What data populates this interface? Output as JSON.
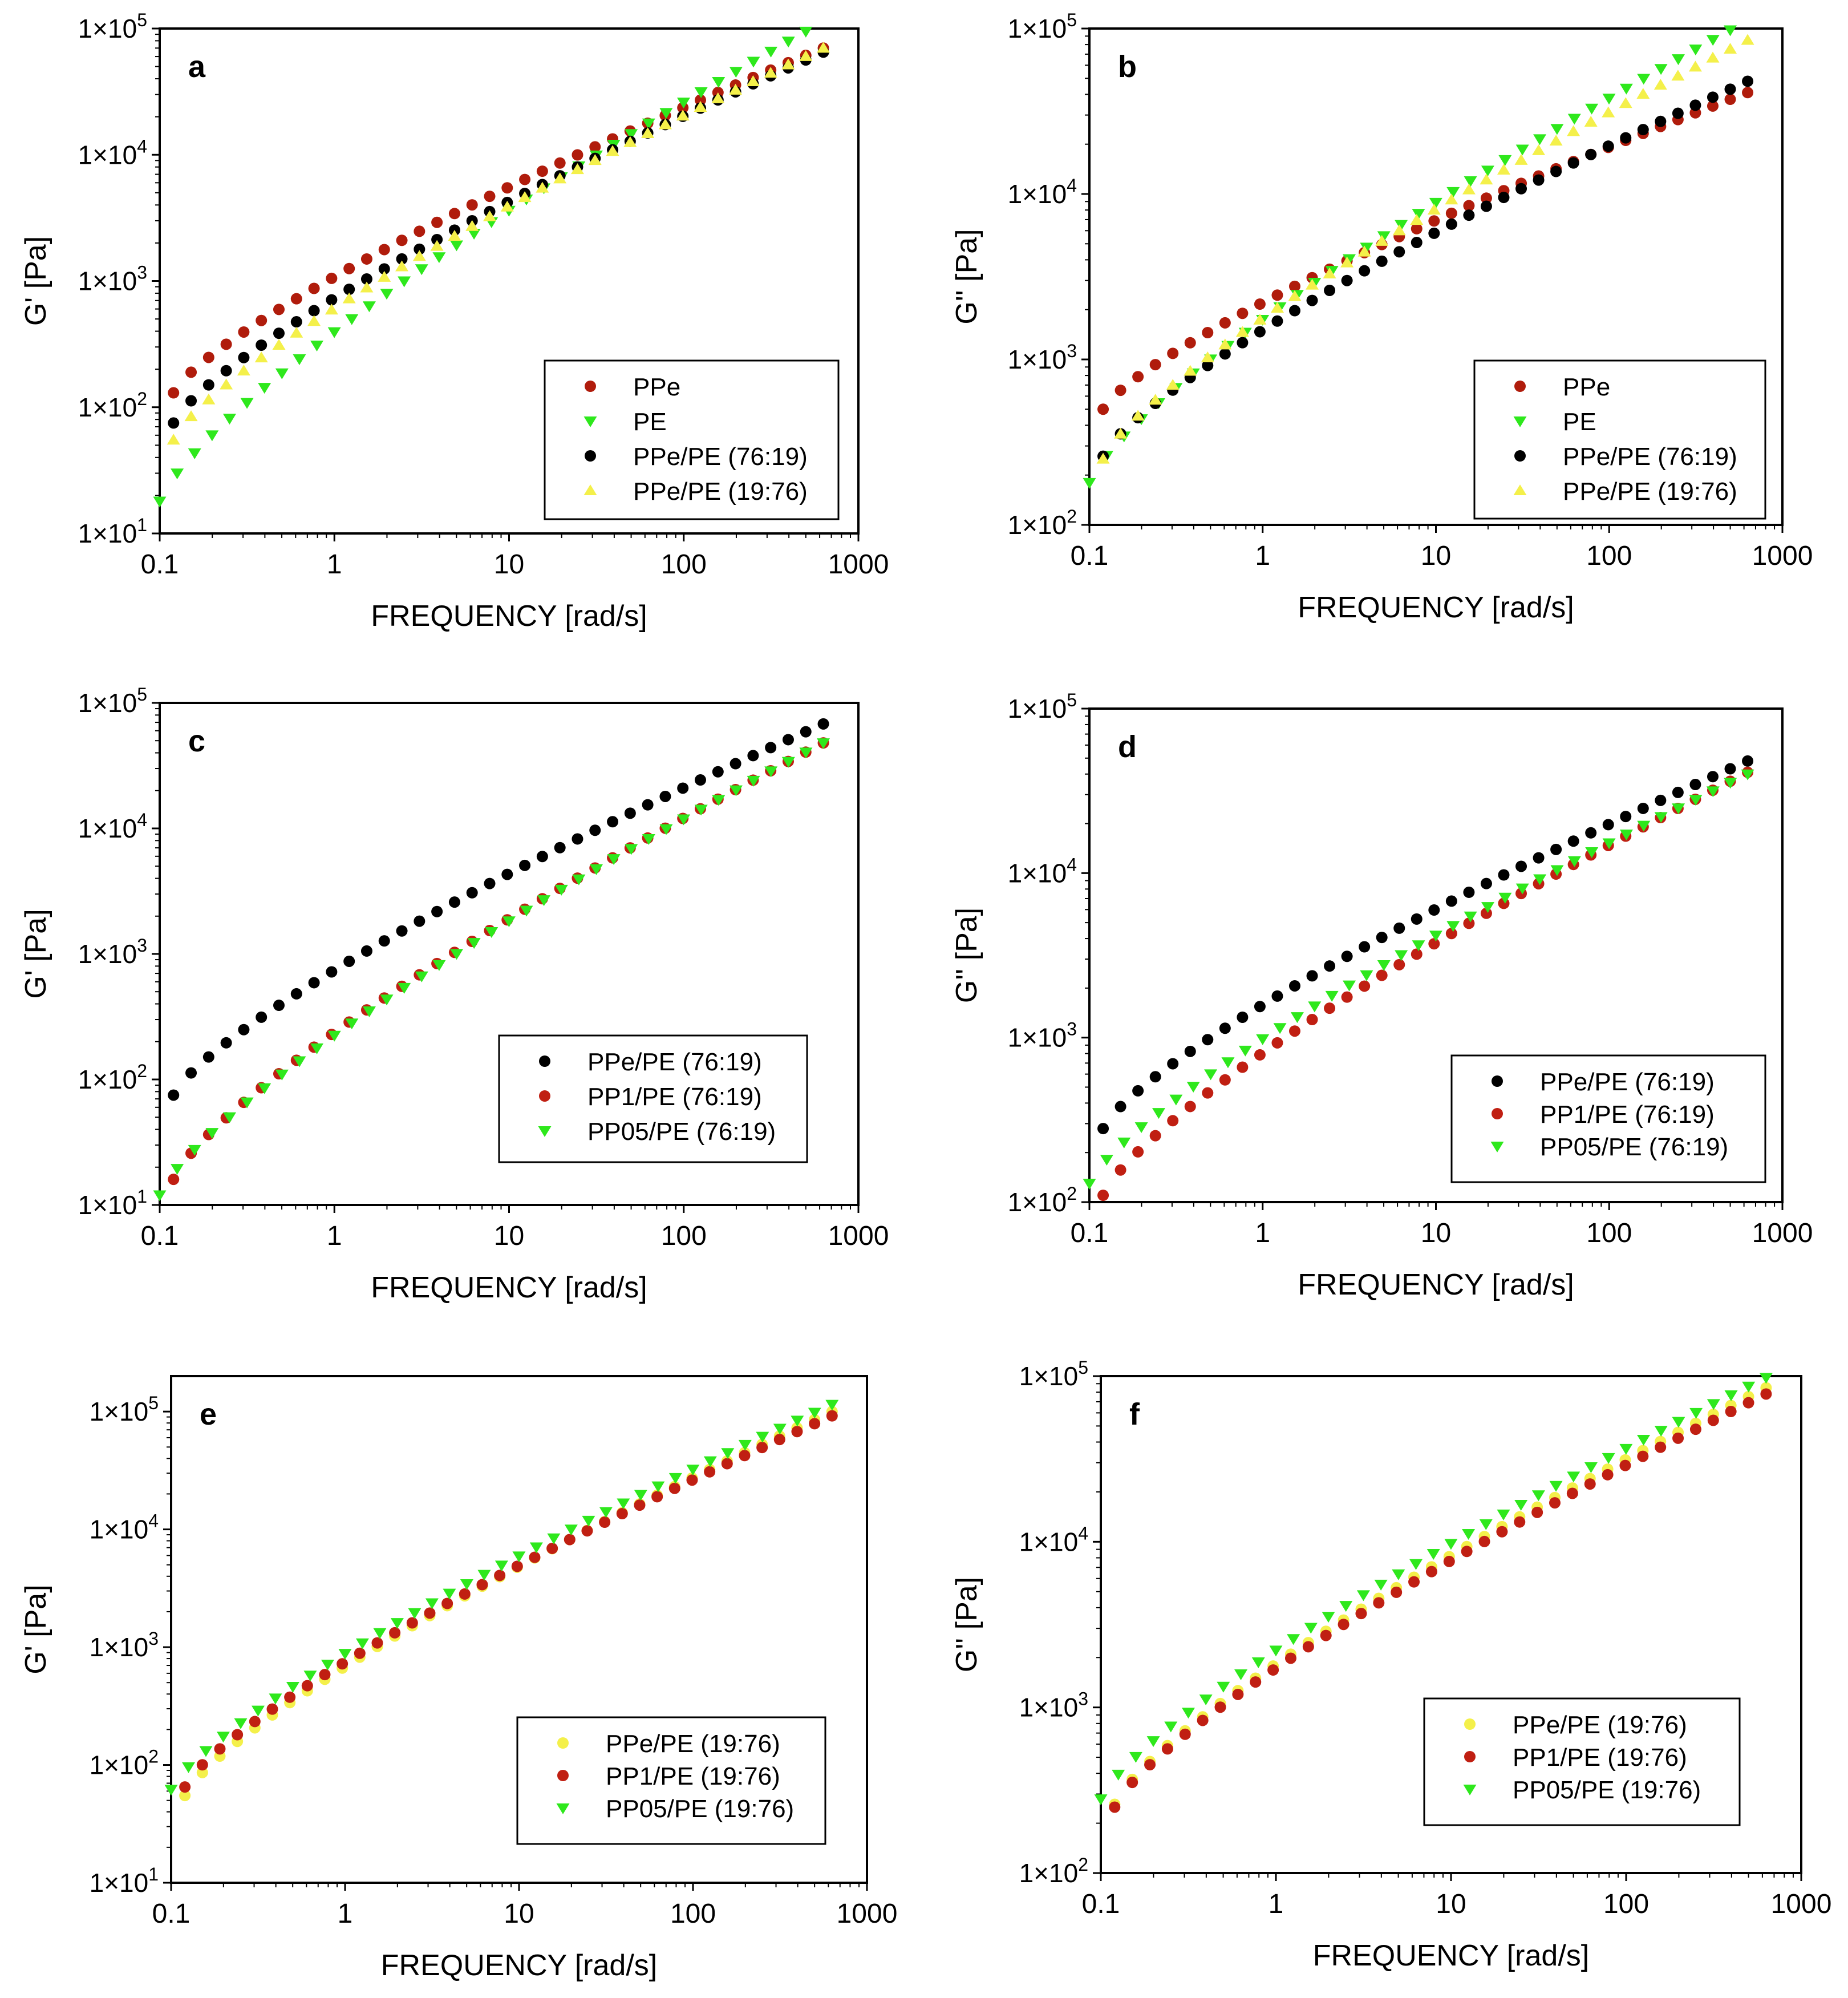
{
  "colors": {
    "PPe": "#b01c0c",
    "PE": "#2ee81c",
    "PPe/PE (76:19)": "#000000",
    "PPe/PE (19:76)": "#f4f04a",
    "PP1/PE (76:19)": "#c01f12",
    "PP05/PE (76:19)": "#2ee81c",
    "PP1/PE (19:76)": "#c01f12",
    "PP05/PE (19:76)": "#2ee81c"
  },
  "chart_data": [
    {
      "panel": "a",
      "type": "scatter",
      "xlabel": "FREQUENCY [rad/s]",
      "ylabel": "G' [Pa]",
      "xscale": "log",
      "yscale": "log",
      "xlim": [
        0.1,
        1000
      ],
      "ylim": [
        10,
        100000
      ],
      "legend_position": "bottom-right",
      "series": [
        {
          "name": "PPe",
          "marker": "circle",
          "x_range": [
            0.12,
            630
          ],
          "y_start": 130,
          "y_end": 70000
        },
        {
          "name": "PE",
          "marker": "triangle-down",
          "x_range": [
            0.1,
            500
          ],
          "y_start": 18,
          "y_end": 95000
        },
        {
          "name": "PPe/PE (76:19)",
          "marker": "circle",
          "x_range": [
            0.12,
            630
          ],
          "y_start": 75,
          "y_end": 65000
        },
        {
          "name": "PPe/PE (19:76)",
          "marker": "triangle-up",
          "x_range": [
            0.12,
            630
          ],
          "y_start": 55,
          "y_end": 70000
        }
      ]
    },
    {
      "panel": "b",
      "type": "scatter",
      "xlabel": "FREQUENCY [rad/s]",
      "ylabel": "G'' [Pa]",
      "xscale": "log",
      "yscale": "log",
      "xlim": [
        0.1,
        1000
      ],
      "ylim": [
        100,
        100000
      ],
      "legend_position": "bottom-right",
      "series": [
        {
          "name": "PPe",
          "marker": "circle",
          "x_range": [
            0.12,
            630
          ],
          "y_start": 500,
          "y_end": 41000
        },
        {
          "name": "PE",
          "marker": "triangle-down",
          "x_range": [
            0.1,
            500
          ],
          "y_start": 180,
          "y_end": 98000
        },
        {
          "name": "PPe/PE (76:19)",
          "marker": "circle",
          "x_range": [
            0.12,
            630
          ],
          "y_start": 260,
          "y_end": 48000
        },
        {
          "name": "PPe/PE (19:76)",
          "marker": "triangle-up",
          "x_range": [
            0.12,
            630
          ],
          "y_start": 250,
          "y_end": 85000
        }
      ]
    },
    {
      "panel": "c",
      "type": "scatter",
      "xlabel": "FREQUENCY [rad/s]",
      "ylabel": "G' [Pa]",
      "xscale": "log",
      "yscale": "log",
      "xlim": [
        0.1,
        1000
      ],
      "ylim": [
        10,
        100000
      ],
      "legend_position": "bottom-right",
      "series": [
        {
          "name": "PPe/PE (76:19)",
          "marker": "circle",
          "x_range": [
            0.12,
            630
          ],
          "y_start": 75,
          "y_end": 68000
        },
        {
          "name": "PP1/PE (76:19)",
          "marker": "circle",
          "x_range": [
            0.12,
            630
          ],
          "y_start": 16,
          "y_end": 48000
        },
        {
          "name": "PP05/PE (76:19)",
          "marker": "triangle-down",
          "x_range": [
            0.1,
            630
          ],
          "y_start": 12,
          "y_end": 48000
        }
      ]
    },
    {
      "panel": "d",
      "type": "scatter",
      "xlabel": "FREQUENCY [rad/s]",
      "ylabel": "G'' [Pa]",
      "xscale": "log",
      "yscale": "log",
      "xlim": [
        0.1,
        1000
      ],
      "ylim": [
        100,
        100000
      ],
      "legend_position": "bottom-right",
      "series": [
        {
          "name": "PPe/PE (76:19)",
          "marker": "circle",
          "x_range": [
            0.12,
            630
          ],
          "y_start": 280,
          "y_end": 48000
        },
        {
          "name": "PP1/PE (76:19)",
          "marker": "circle",
          "x_range": [
            0.12,
            630
          ],
          "y_start": 110,
          "y_end": 41000
        },
        {
          "name": "PP05/PE (76:19)",
          "marker": "triangle-down",
          "x_range": [
            0.1,
            630
          ],
          "y_start": 130,
          "y_end": 40000
        }
      ]
    },
    {
      "panel": "e",
      "type": "scatter",
      "xlabel": "FREQUENCY [rad/s]",
      "ylabel": "G' [Pa]",
      "xscale": "log",
      "yscale": "log",
      "xlim": [
        0.1,
        1000
      ],
      "ylim": [
        10,
        200000
      ],
      "legend_position": "bottom-right",
      "series": [
        {
          "name": "PPe/PE (19:76)",
          "marker": "circle",
          "x_range": [
            0.12,
            630
          ],
          "y_start": 55,
          "y_end": 100000
        },
        {
          "name": "PP1/PE (19:76)",
          "marker": "circle",
          "x_range": [
            0.12,
            630
          ],
          "y_start": 65,
          "y_end": 92000
        },
        {
          "name": "PP05/PE (19:76)",
          "marker": "triangle-down",
          "x_range": [
            0.1,
            630
          ],
          "y_start": 62,
          "y_end": 115000
        }
      ]
    },
    {
      "panel": "f",
      "type": "scatter",
      "xlabel": "FREQUENCY [rad/s]",
      "ylabel": "G'' [Pa]",
      "xscale": "log",
      "yscale": "log",
      "xlim": [
        0.1,
        1000
      ],
      "ylim": [
        100,
        100000
      ],
      "legend_position": "bottom-right",
      "series": [
        {
          "name": "PPe/PE (19:76)",
          "marker": "circle",
          "x_range": [
            0.12,
            630
          ],
          "y_start": 260,
          "y_end": 85000
        },
        {
          "name": "PP1/PE (19:76)",
          "marker": "circle",
          "x_range": [
            0.12,
            630
          ],
          "y_start": 250,
          "y_end": 78000
        },
        {
          "name": "PP05/PE (19:76)",
          "marker": "triangle-down",
          "x_range": [
            0.1,
            630
          ],
          "y_start": 280,
          "y_end": 98000
        }
      ]
    }
  ]
}
